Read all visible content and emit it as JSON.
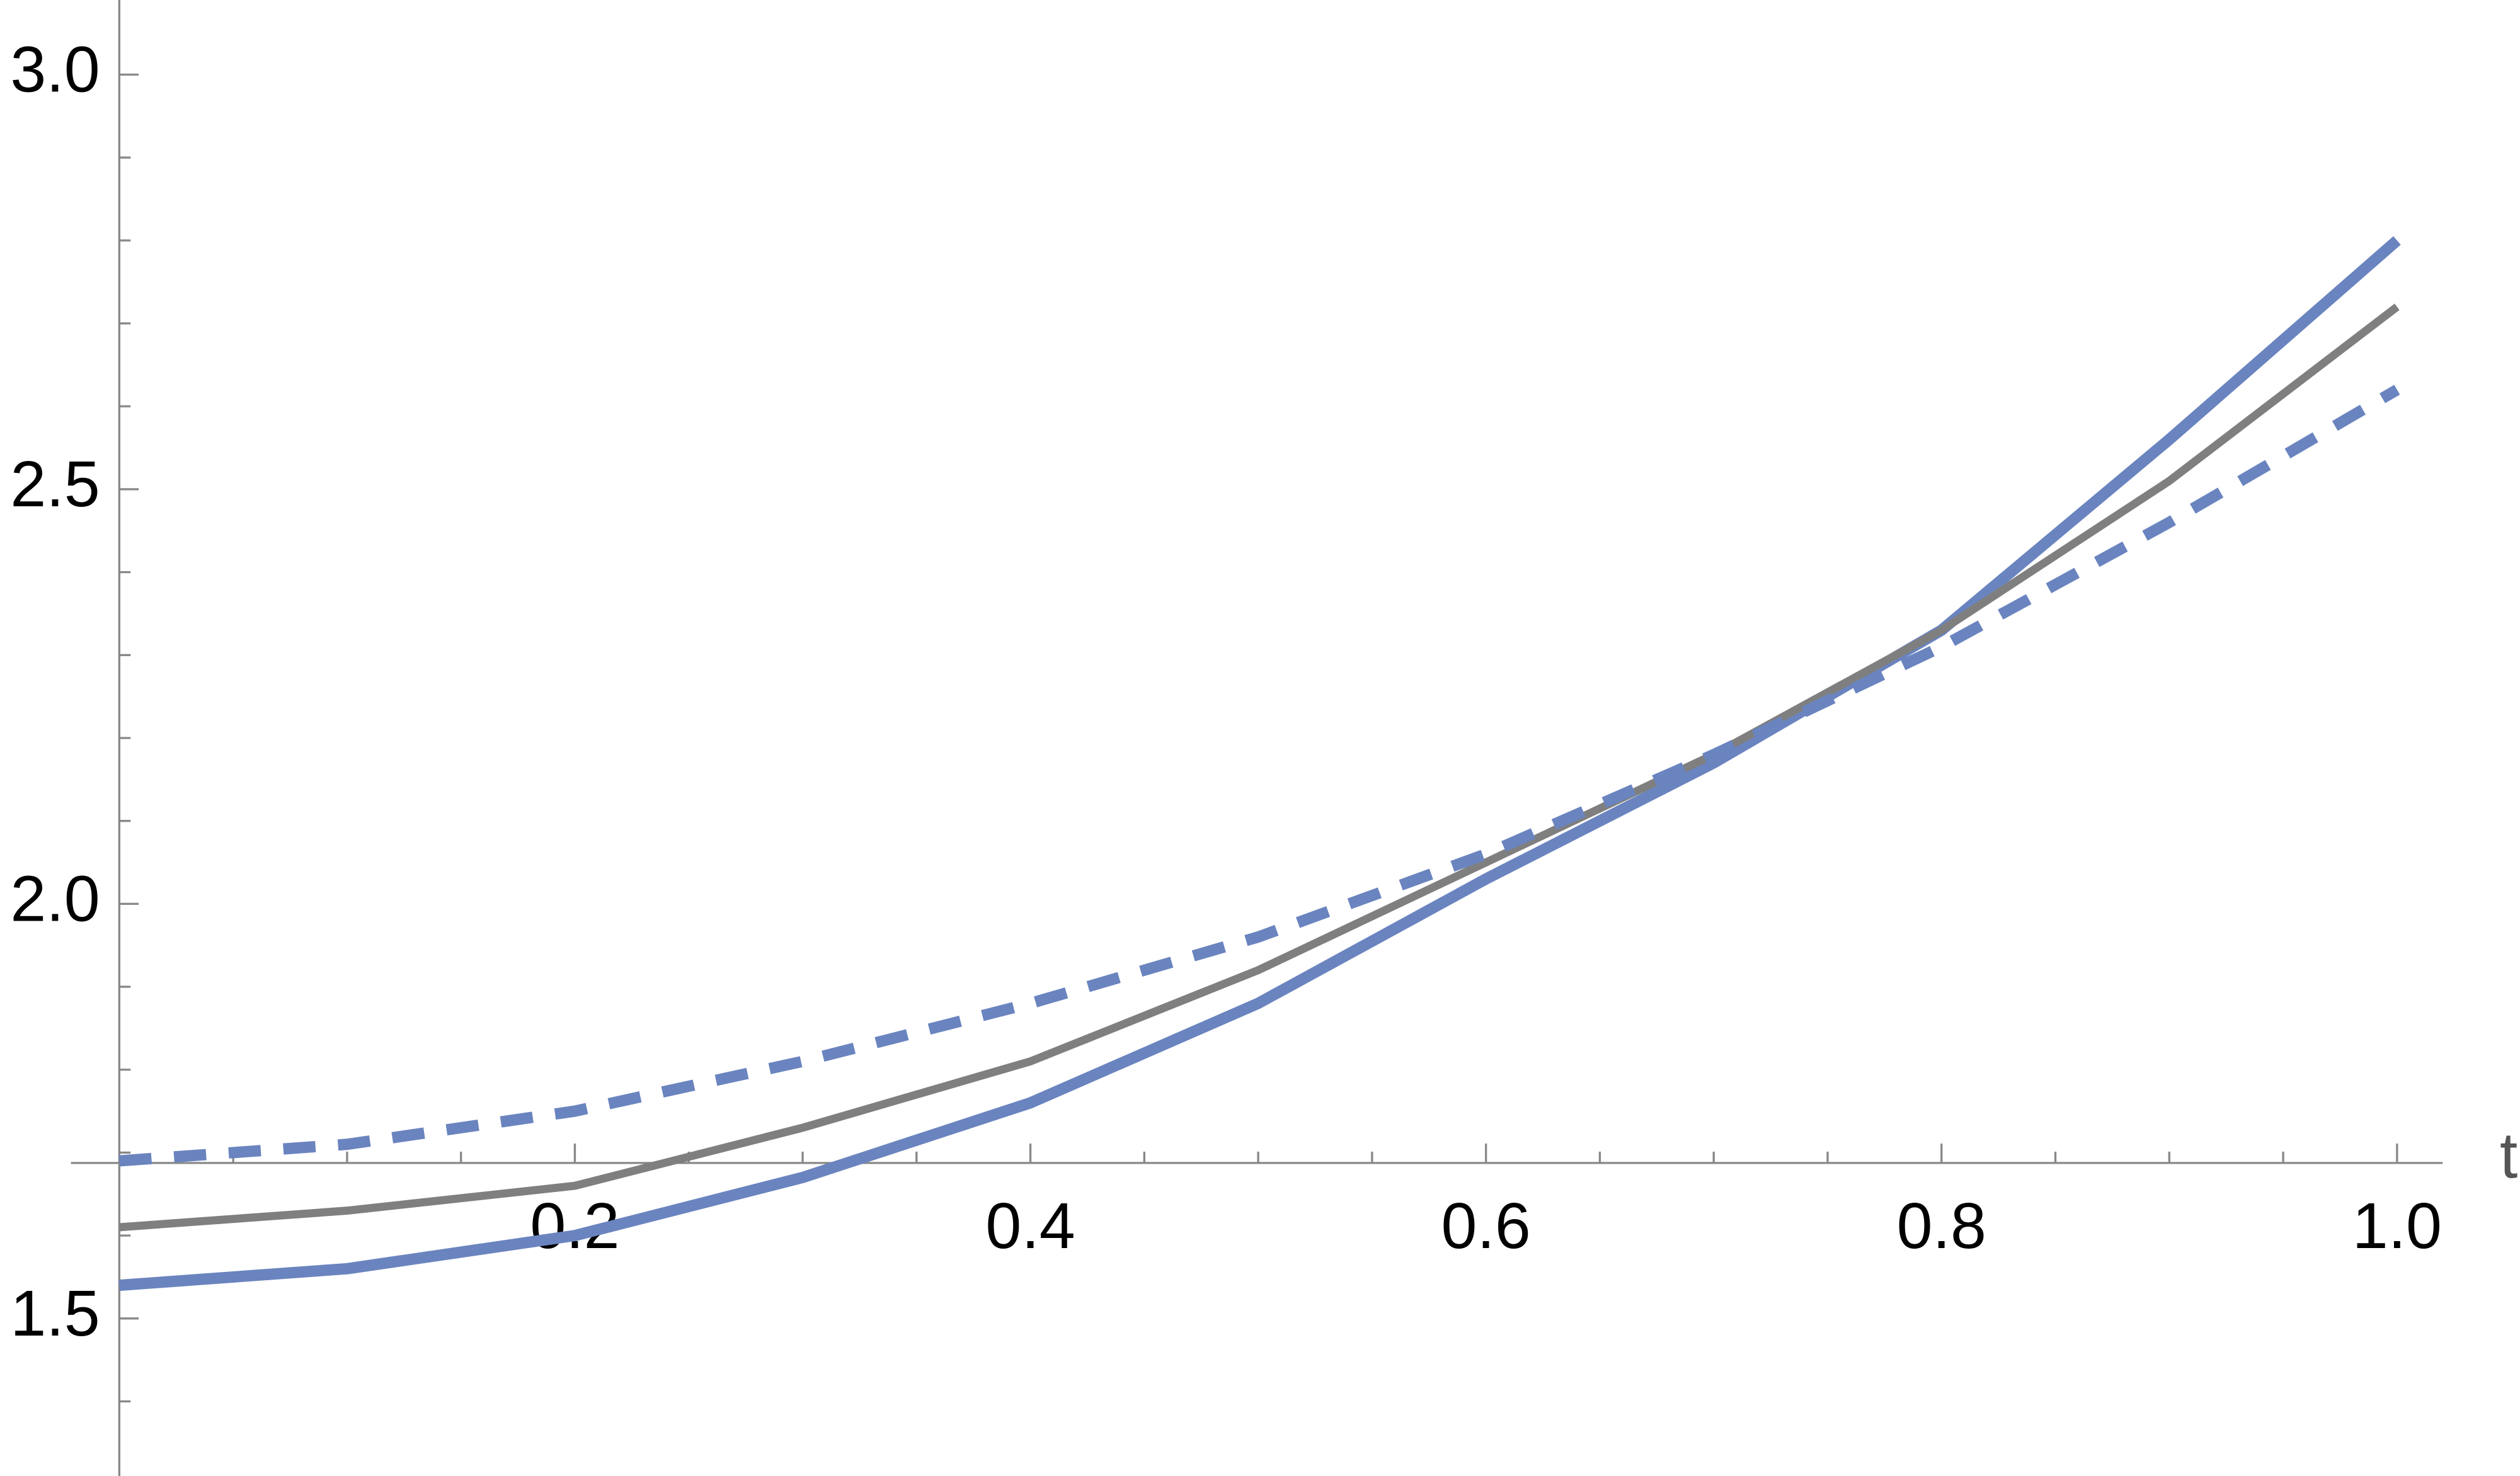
{
  "chart_data": {
    "type": "line",
    "x_label": "t",
    "x": [
      0,
      0.1,
      0.2,
      0.3,
      0.4,
      0.5,
      0.6,
      0.7,
      0.8,
      0.9,
      1.0
    ],
    "series": [
      {
        "color": "#6a84bf",
        "style": "solid",
        "values": [
          1.54,
          1.56,
          1.6,
          1.67,
          1.76,
          1.88,
          2.03,
          2.17,
          2.33,
          2.56,
          2.8
        ]
      },
      {
        "color": "#7f7f7f",
        "style": "solid",
        "values": [
          1.61,
          1.63,
          1.66,
          1.73,
          1.81,
          1.92,
          2.05,
          2.18,
          2.33,
          2.51,
          2.72
        ]
      },
      {
        "color": "#6a84bf",
        "style": "dashed",
        "values": [
          1.69,
          1.71,
          1.75,
          1.81,
          1.88,
          1.96,
          2.06,
          2.18,
          2.31,
          2.46,
          2.62
        ]
      }
    ],
    "xlim": [
      0,
      1.02
    ],
    "ylim": [
      1.31,
      3.09
    ],
    "axes_origin": [
      0,
      1.6875
    ],
    "xticks": [
      0.2,
      0.4,
      0.6,
      0.8,
      {
        "value": 1,
        "label": "1.0"
      }
    ],
    "yticks": [
      1.5,
      {
        "value": 2,
        "label": "2.0"
      },
      2.5,
      {
        "value": 3,
        "label": "3.0"
      }
    ],
    "xminorticks": [
      0.05,
      0.1,
      0.15,
      0.25,
      0.3,
      0.35,
      0.45,
      0.5,
      0.55,
      0.65,
      0.7,
      0.75,
      0.85,
      0.9,
      0.95
    ],
    "yminorticks": [
      1.4,
      1.6,
      1.7,
      1.8,
      1.9,
      2.1,
      2.2,
      2.3,
      2.4,
      2.6,
      2.7,
      2.8,
      2.9
    ]
  }
}
